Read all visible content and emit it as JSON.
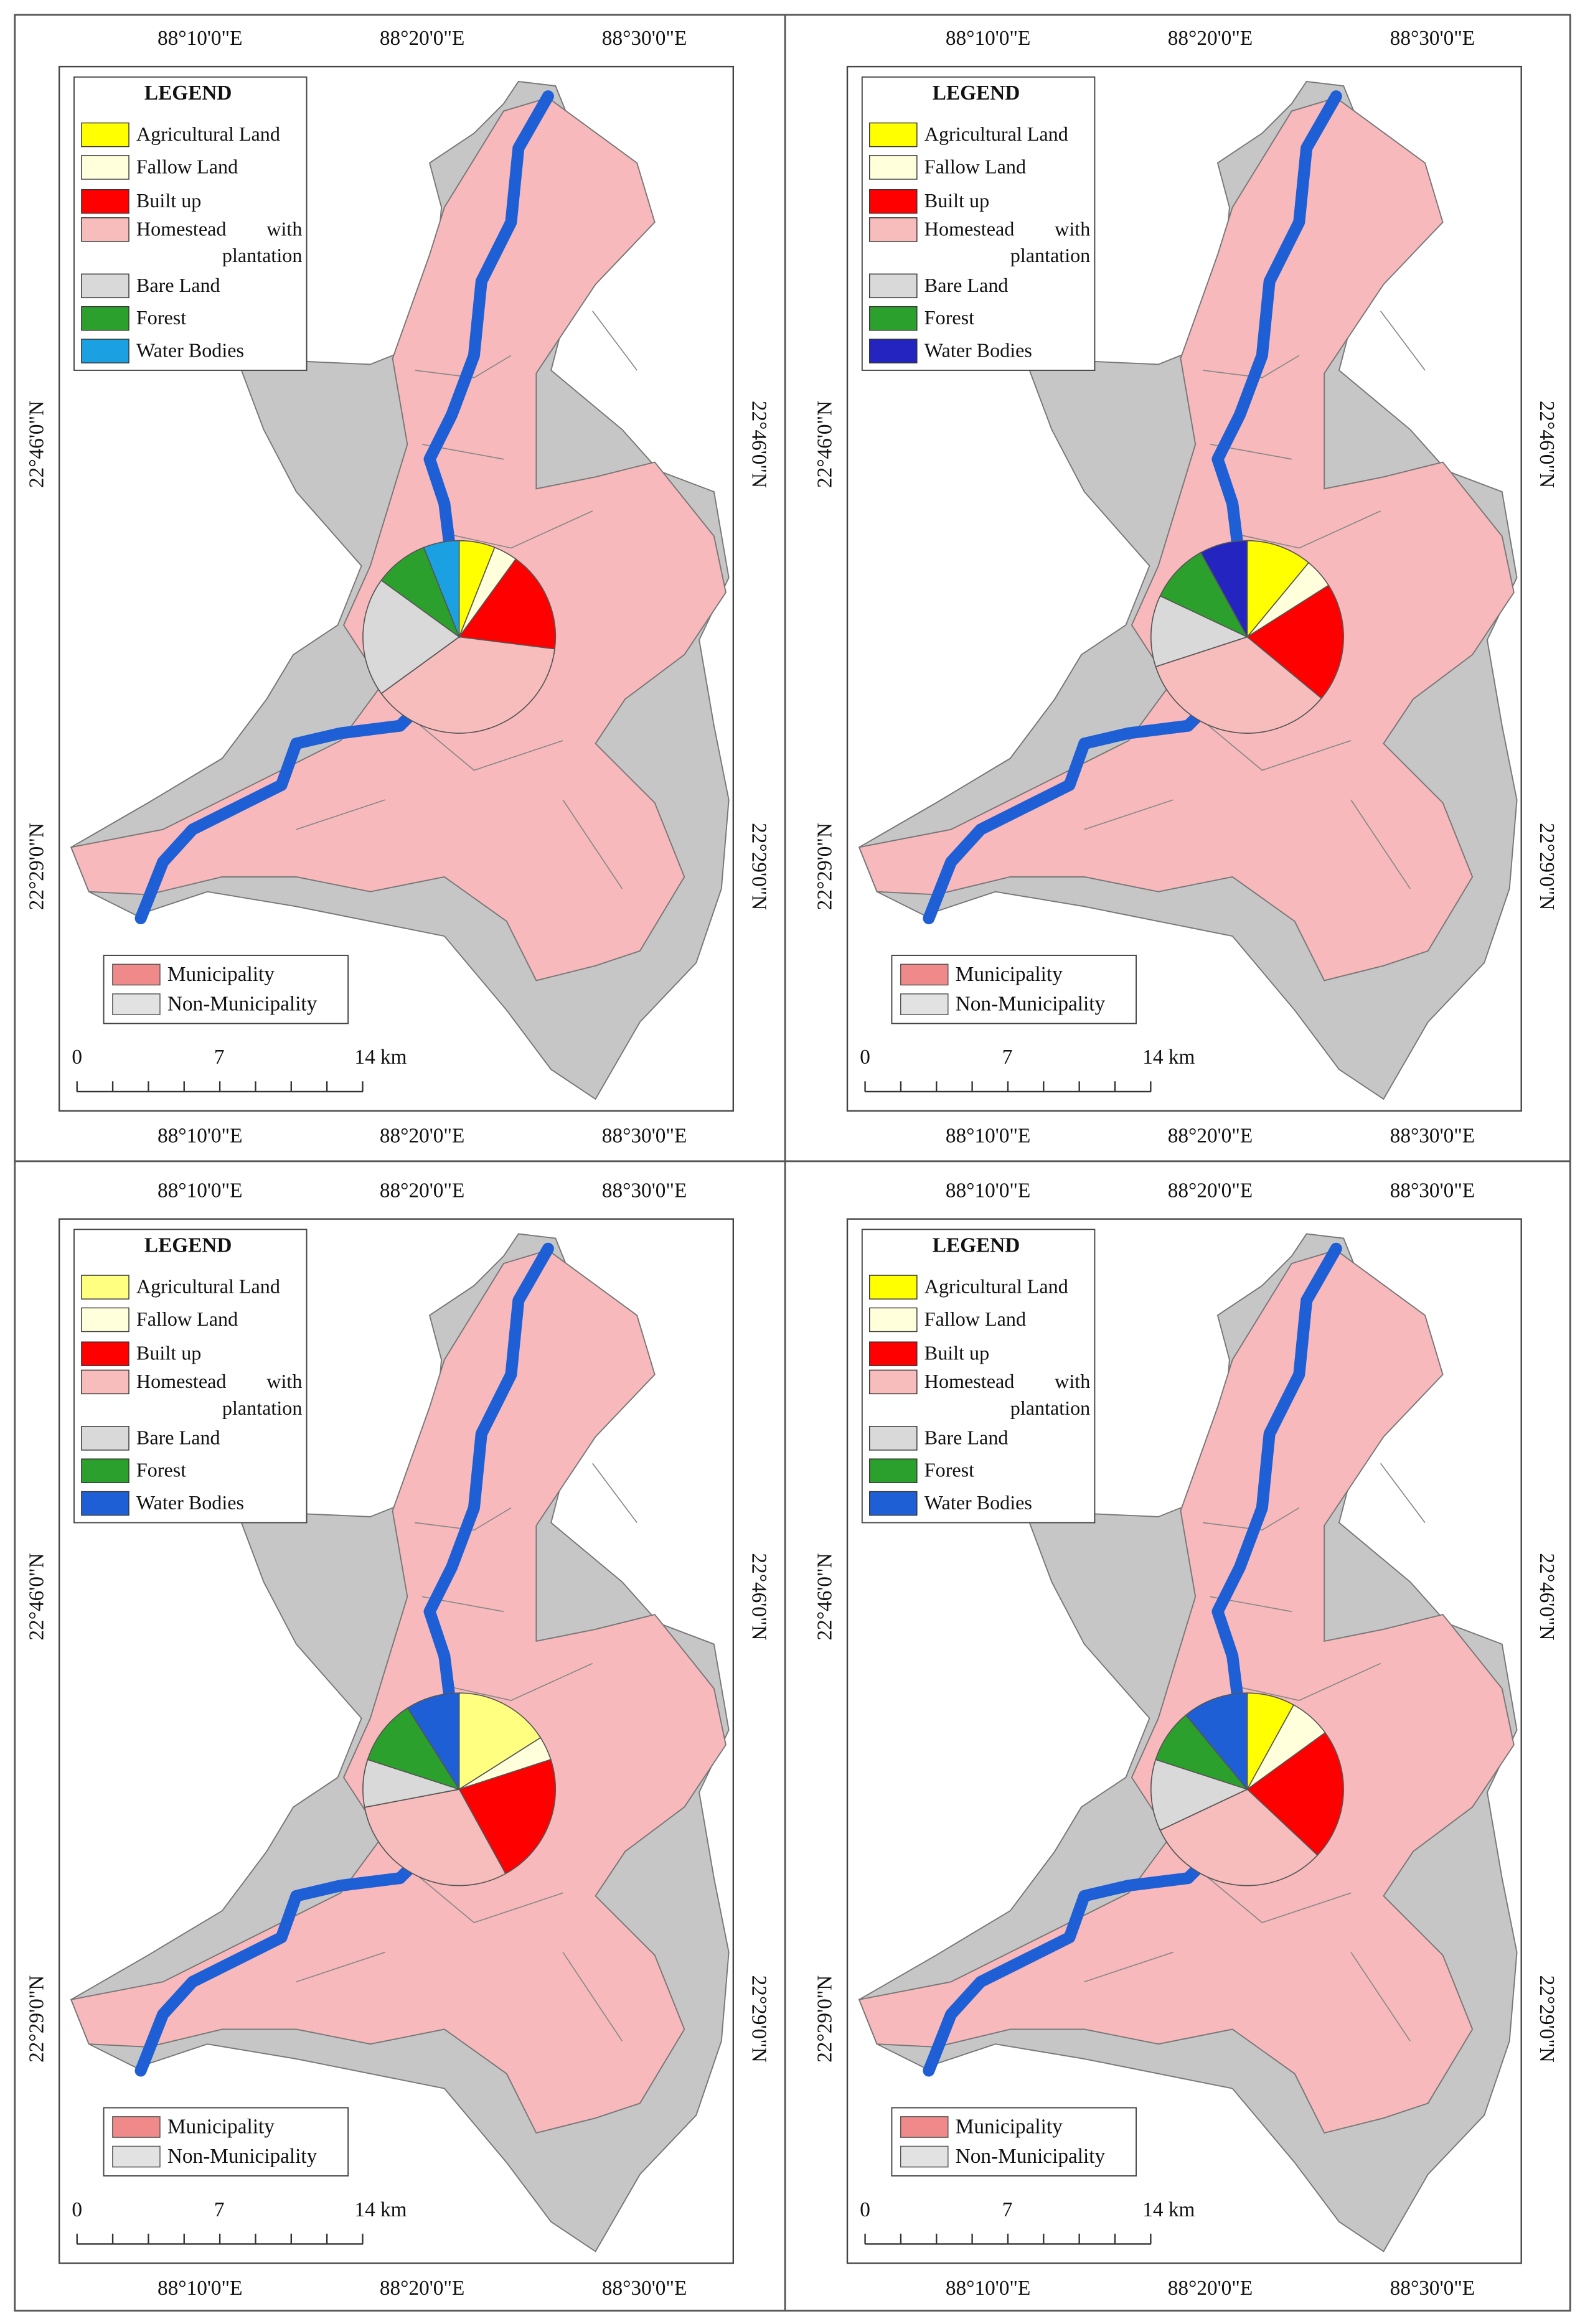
{
  "map": {
    "lon_labels": [
      "88°10'0\"E",
      "88°20'0\"E",
      "88°30'0\"E"
    ],
    "lat_labels": [
      "22°46'0\"N",
      "22°29'0\"N"
    ],
    "zones": [
      {
        "name": "Municipality",
        "color": "#f08a8a"
      },
      {
        "name": "Non-Municipality",
        "color": "#e2e2e2"
      }
    ],
    "scale_labels": [
      "0",
      "7",
      "14 km"
    ]
  },
  "chart_data": [
    {
      "type": "pie",
      "title": "LEGEND",
      "categories": [
        "Agricultural Land",
        "Fallow Land",
        "Built up",
        "Homestead with plantation",
        "Bare Land",
        "Forest",
        "Water Bodies"
      ],
      "values": [
        6,
        4,
        17,
        38,
        20,
        9,
        6
      ],
      "colors": [
        "#ffff00",
        "#ffffdc",
        "#ff0000",
        "#f7bcbc",
        "#d9d9d9",
        "#2ca02c",
        "#1ba1e2"
      ]
    },
    {
      "type": "pie",
      "title": "LEGEND",
      "categories": [
        "Agricultural Land",
        "Fallow Land",
        "Built up",
        "Homestead with plantation",
        "Bare Land",
        "Forest",
        "Water Bodies"
      ],
      "values": [
        11,
        5,
        20,
        34,
        12,
        10,
        8
      ],
      "colors": [
        "#ffff00",
        "#ffffdc",
        "#ff0000",
        "#f7bcbc",
        "#d9d9d9",
        "#2ca02c",
        "#2424c0"
      ]
    },
    {
      "type": "pie",
      "title": "LEGEND",
      "categories": [
        "Agricultural Land",
        "Fallow Land",
        "Built up",
        "Homestead with plantation",
        "Bare Land",
        "Forest",
        "Water Bodies"
      ],
      "values": [
        16,
        4,
        22,
        30,
        8,
        11,
        9
      ],
      "colors": [
        "#ffff80",
        "#ffffdc",
        "#ff0000",
        "#f7bcbc",
        "#d9d9d9",
        "#2ca02c",
        "#1f5fd6"
      ]
    },
    {
      "type": "pie",
      "title": "LEGEND",
      "categories": [
        "Agricultural Land",
        "Fallow Land",
        "Built up",
        "Homestead with plantation",
        "Bare Land",
        "Forest",
        "Water Bodies"
      ],
      "values": [
        8,
        7,
        22,
        31,
        12,
        9,
        11
      ],
      "colors": [
        "#ffff00",
        "#ffffdc",
        "#ff0000",
        "#f7bcbc",
        "#d9d9d9",
        "#2ca02c",
        "#1f5fd6"
      ]
    }
  ]
}
